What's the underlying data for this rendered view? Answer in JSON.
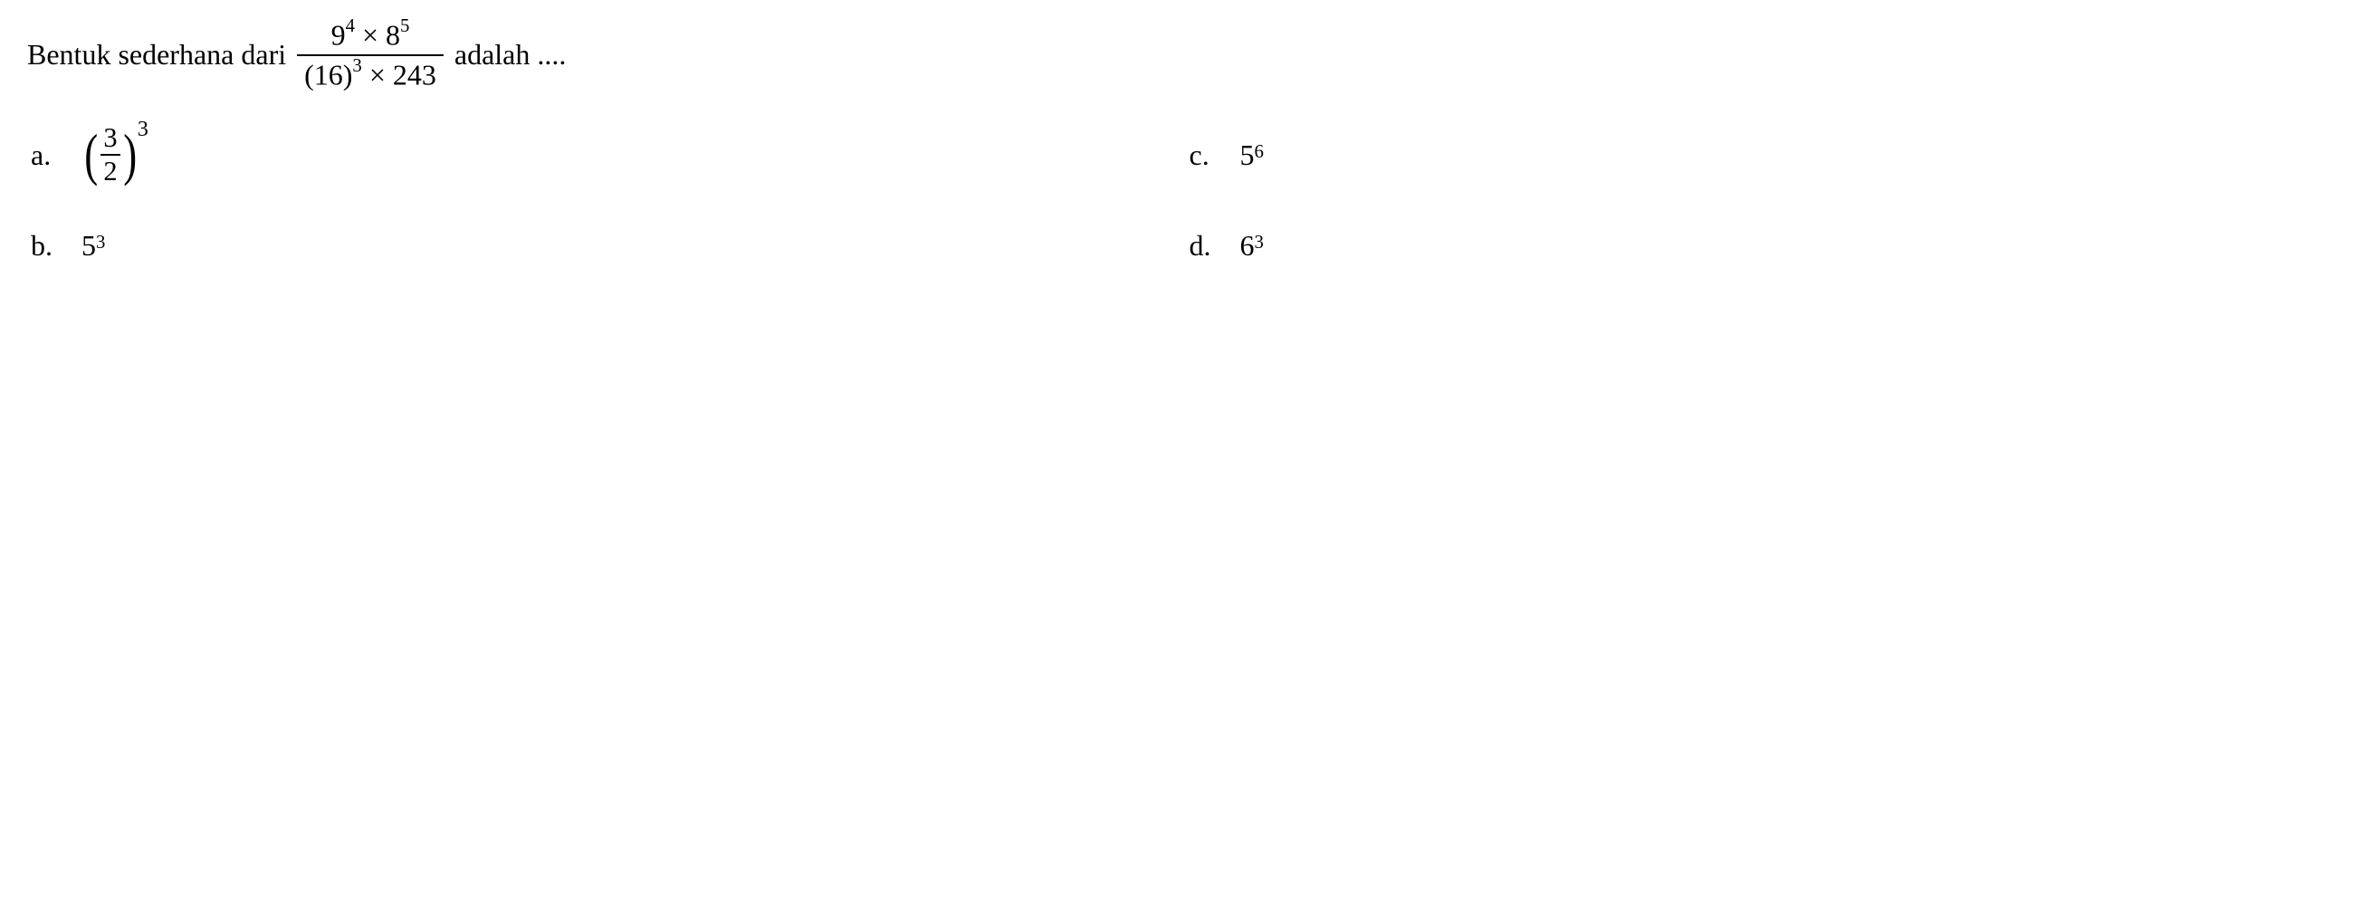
{
  "question": {
    "text_before": "Bentuk sederhana dari",
    "text_after": "adalah ....",
    "fraction": {
      "numerator": {
        "base1": "9",
        "exp1": "4",
        "op": "×",
        "base2": "8",
        "exp2": "5"
      },
      "denominator": {
        "paren_open": "(",
        "base1": "16",
        "paren_close": ")",
        "exp1": "3",
        "op": "×",
        "val2": "243"
      }
    }
  },
  "options": {
    "a": {
      "label": "a.",
      "type": "paren_fraction_power",
      "frac_num": "3",
      "frac_den": "2",
      "exp": "3"
    },
    "b": {
      "label": "b.",
      "type": "power",
      "base": "5",
      "exp": "3"
    },
    "c": {
      "label": "c.",
      "type": "power",
      "base": "5",
      "exp": "6"
    },
    "d": {
      "label": "d.",
      "type": "power",
      "base": "6",
      "exp": "3"
    }
  },
  "style": {
    "font_family": "Times New Roman",
    "font_size_pt": 24,
    "text_color": "#000000",
    "background_color": "#ffffff"
  }
}
